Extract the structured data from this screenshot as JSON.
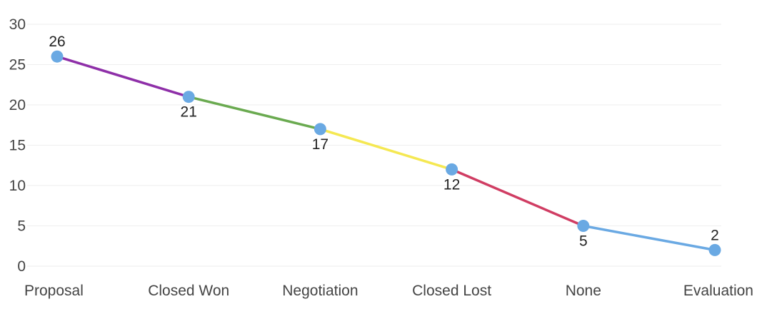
{
  "chart_data": {
    "type": "line",
    "categories": [
      "Proposal",
      "Closed Won",
      "Negotiation",
      "Closed Lost",
      "None",
      "Evaluation"
    ],
    "values": [
      26,
      21,
      17,
      12,
      5,
      2
    ],
    "segment_colors": [
      "#8e2fa8",
      "#6aaa50",
      "#f5e852",
      "#d03d63",
      "#6aa9e3"
    ],
    "point_color": "#6aa9e3",
    "ylim": [
      0,
      30
    ],
    "yticks": [
      0,
      5,
      10,
      15,
      20,
      25,
      30
    ],
    "label_positions": [
      "above",
      "below",
      "below",
      "below",
      "below",
      "above"
    ],
    "grid": true,
    "title": "",
    "xlabel": "",
    "ylabel": ""
  }
}
